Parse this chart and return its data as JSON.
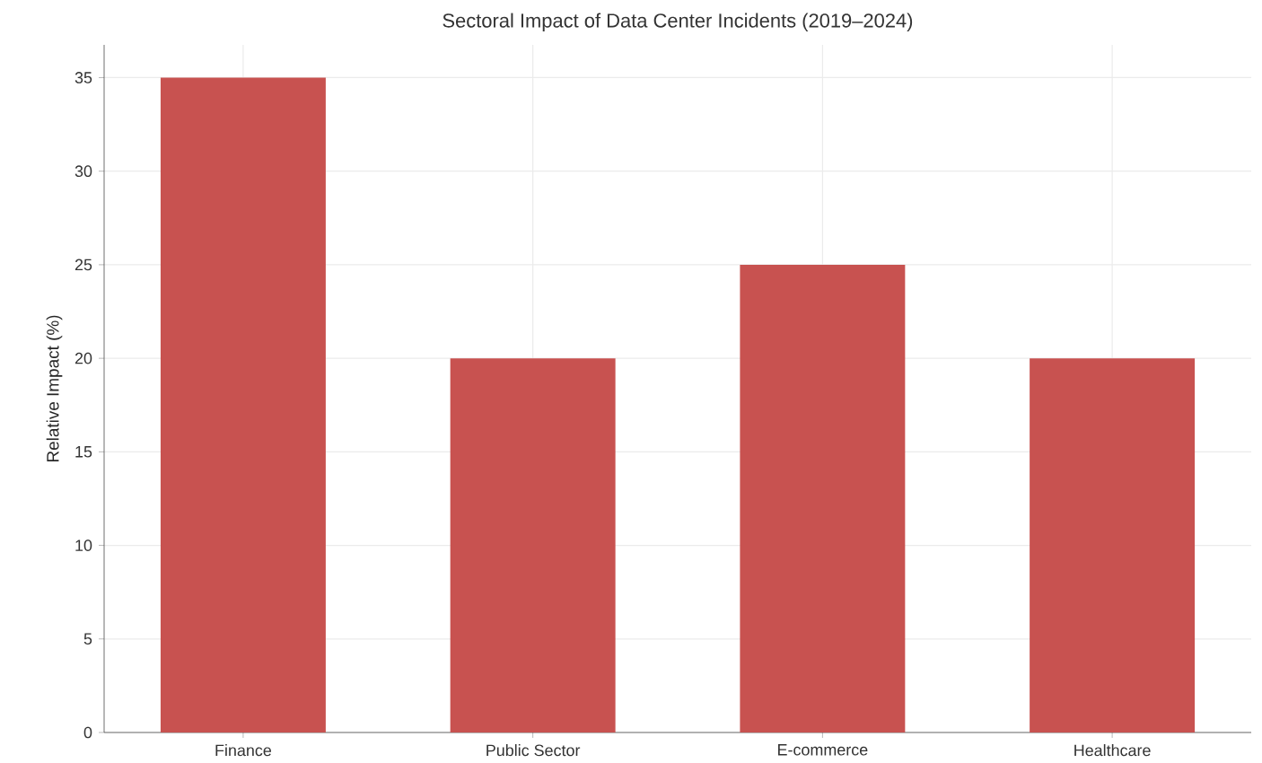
{
  "chart_data": {
    "type": "bar",
    "title": "Sectoral Impact of Data Center Incidents (2019–2024)",
    "ylabel": "Relative Impact (%)",
    "categories": [
      "Finance",
      "Public Sector",
      "E-commerce",
      "Healthcare"
    ],
    "values": [
      35,
      20,
      25,
      20
    ],
    "color": "#c85250",
    "ylim": [
      0,
      36.75
    ],
    "yticks": [
      0,
      5,
      10,
      15,
      20,
      25,
      30,
      35
    ],
    "grid": true
  }
}
